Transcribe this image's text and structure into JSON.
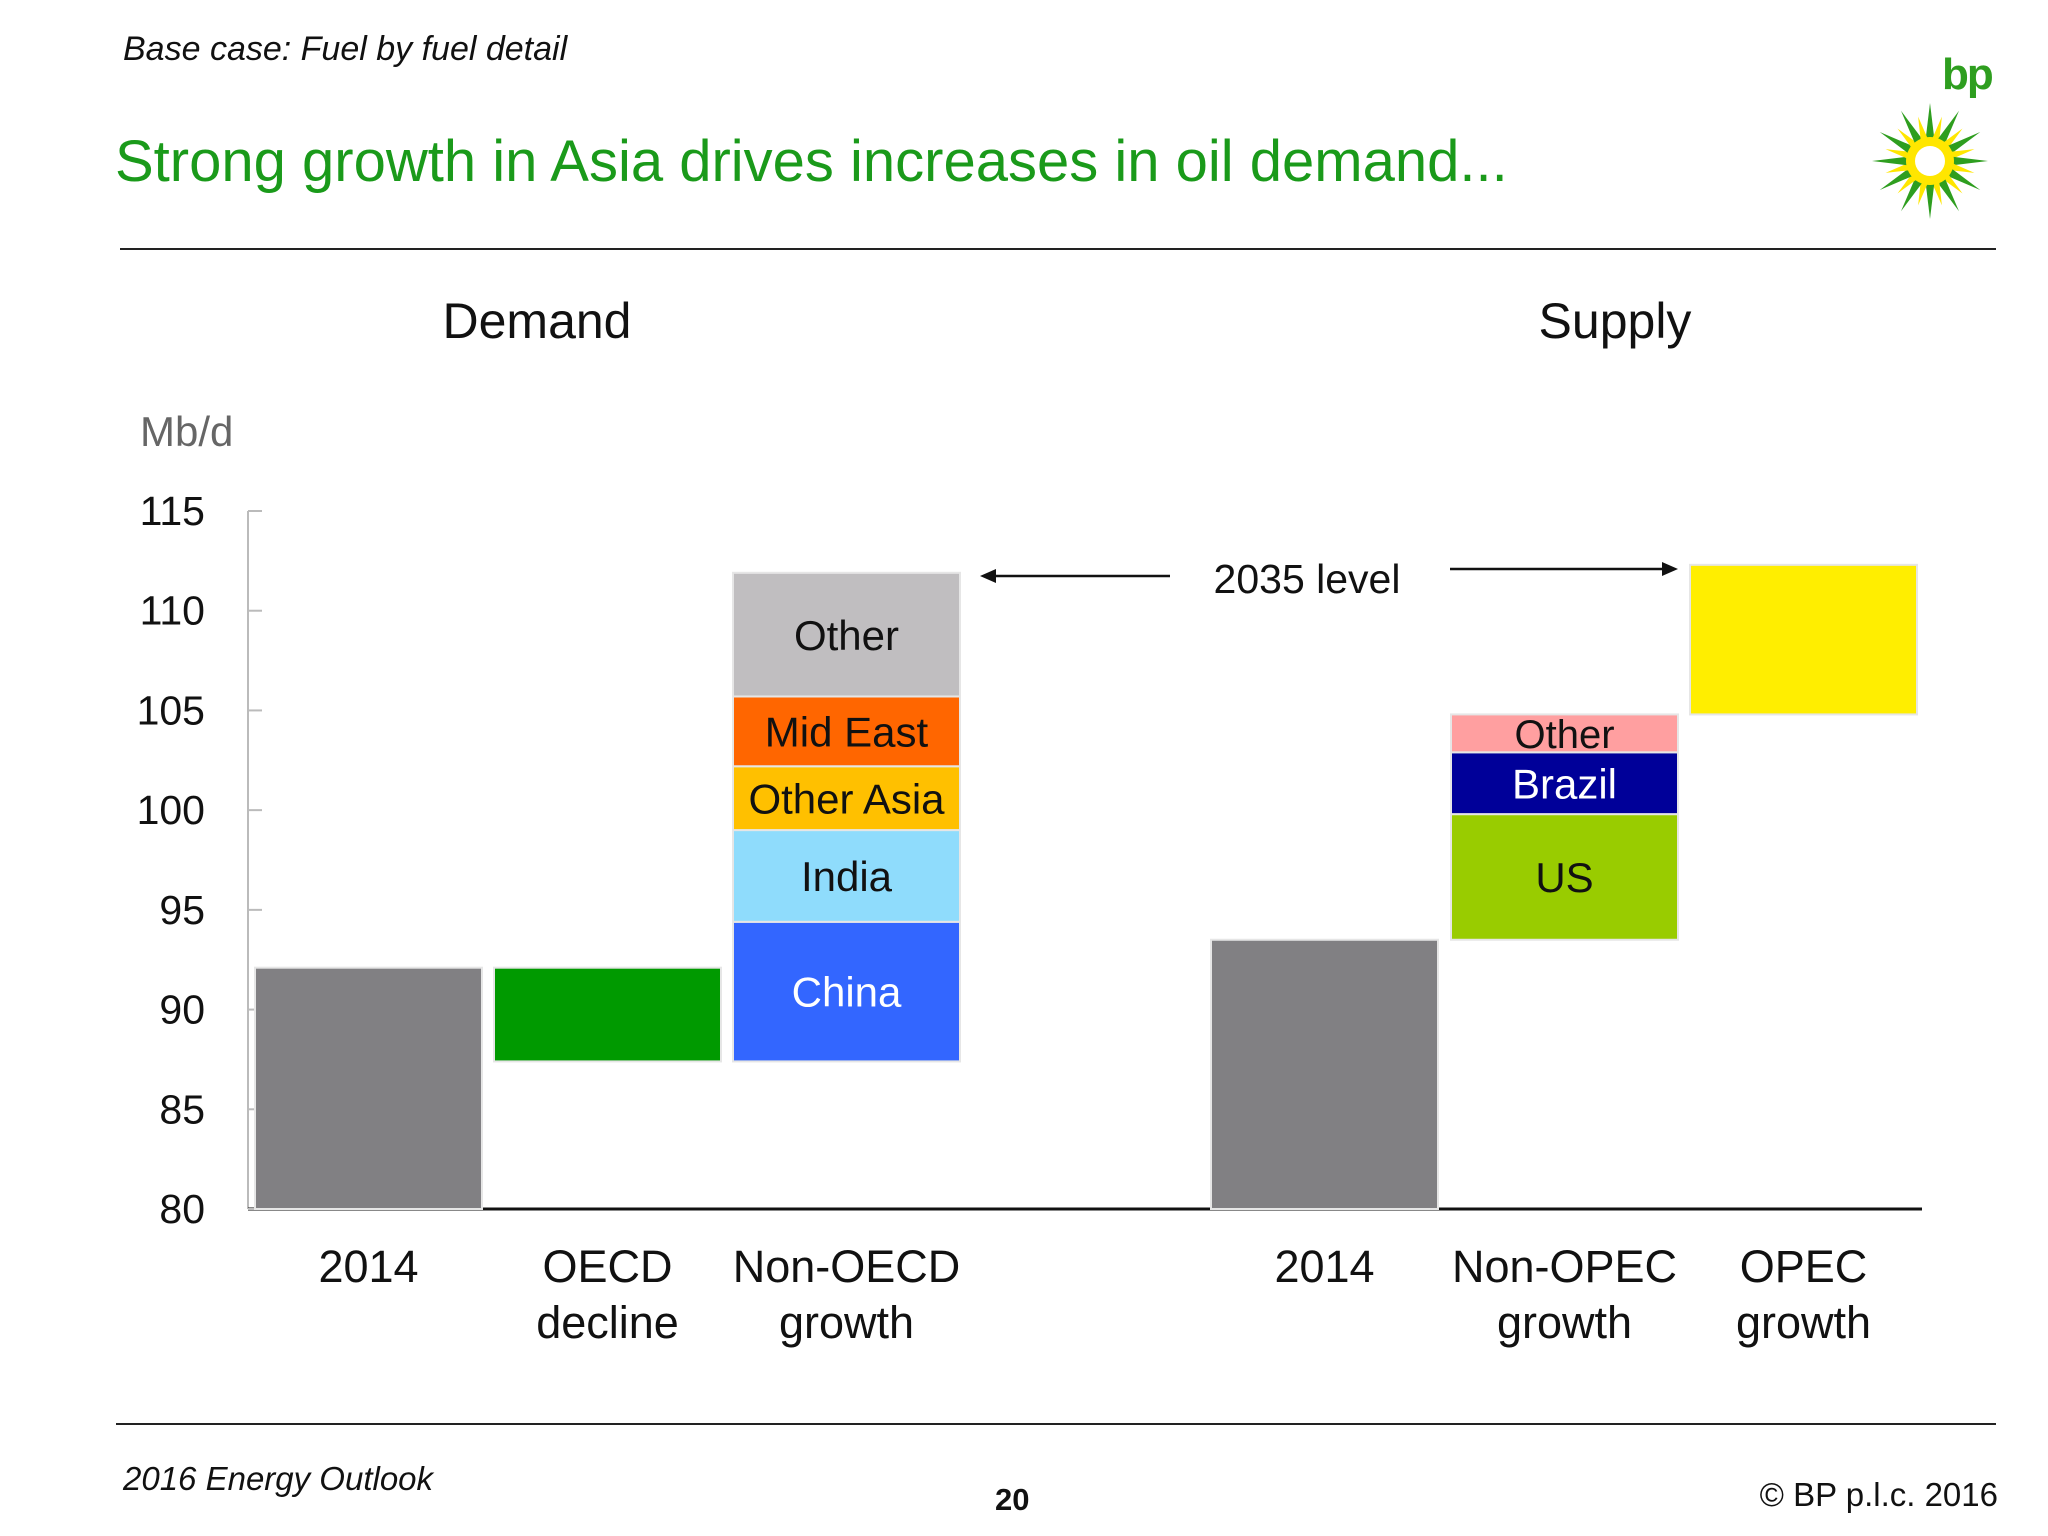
{
  "header": {
    "subtitle": "Base case: Fuel by fuel detail",
    "title": "Strong growth in Asia drives increases in oil demand...",
    "logo_text": "bp",
    "colors": {
      "title": "#1a9a1a",
      "logo_green": "#2e9e1f",
      "logo_yellow": "#ffe600"
    }
  },
  "footer": {
    "left": "2016 Energy Outlook",
    "page": "20",
    "right": "© BP p.l.c. 2016"
  },
  "chart_data": {
    "type": "bar",
    "ylabel": "Mb/d",
    "ylim": [
      80,
      115
    ],
    "yticks": [
      "80",
      "85",
      "90",
      "95",
      "100",
      "105",
      "110",
      "115"
    ],
    "annotation": "2035 level",
    "panels": [
      {
        "title": "Demand",
        "categories": [
          {
            "label": [
              "2014"
            ],
            "segments": [
              {
                "from": 80,
                "to": 92.1,
                "color": "#818083"
              }
            ]
          },
          {
            "label": [
              "OECD",
              "decline"
            ],
            "segments": [
              {
                "from": 87.4,
                "to": 92.1,
                "color": "#009a00"
              }
            ]
          },
          {
            "label": [
              "Non-OECD",
              "growth"
            ],
            "segments": [
              {
                "name": "China",
                "from": 87.4,
                "to": 94.4,
                "color": "#3366ff",
                "text_color": "#ffffff"
              },
              {
                "name": "India",
                "from": 94.4,
                "to": 99.0,
                "color": "#8fdcfc",
                "text_color": "#111111"
              },
              {
                "name": "Other Asia",
                "from": 99.0,
                "to": 102.2,
                "color": "#ffc000",
                "text_color": "#111111"
              },
              {
                "name": "Mid East",
                "from": 102.2,
                "to": 105.7,
                "color": "#ff6600",
                "text_color": "#111111"
              },
              {
                "name": "Other",
                "from": 105.7,
                "to": 111.9,
                "color": "#c0bec0",
                "text_color": "#111111"
              }
            ]
          }
        ]
      },
      {
        "title": "Supply",
        "categories": [
          {
            "label": [
              "2014"
            ],
            "segments": [
              {
                "from": 80,
                "to": 93.5,
                "color": "#818083"
              }
            ]
          },
          {
            "label": [
              "Non-OPEC",
              "growth"
            ],
            "segments": [
              {
                "name": "US",
                "from": 93.5,
                "to": 99.8,
                "color": "#99cc00",
                "text_color": "#111111"
              },
              {
                "name": "Brazil",
                "from": 99.8,
                "to": 102.9,
                "color": "#000099",
                "text_color": "#ffffff"
              },
              {
                "name": "Other",
                "from": 102.9,
                "to": 104.8,
                "color": "#ff9fa0",
                "text_color": "#111111"
              }
            ]
          },
          {
            "label": [
              "OPEC",
              "growth"
            ],
            "segments": [
              {
                "from": 104.8,
                "to": 112.3,
                "color": "#ffee00"
              }
            ]
          }
        ]
      }
    ]
  }
}
